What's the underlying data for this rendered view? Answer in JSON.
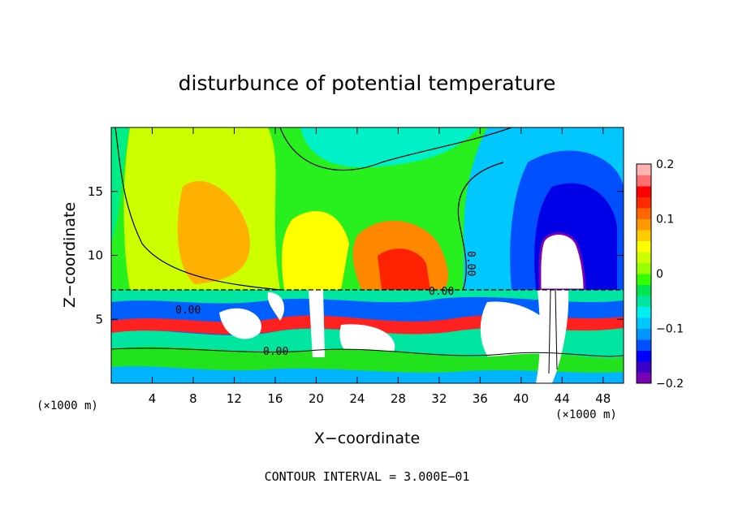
{
  "chart_data": {
    "type": "heatmap",
    "title": "disturbunce of potential temperature",
    "xlabel": "X−coordinate",
    "ylabel": "Z−coordinate",
    "x_unit": "(×1000 m)",
    "y_unit": "(×1000 m)",
    "xlim": [
      0,
      50
    ],
    "ylim": [
      0,
      20
    ],
    "x_ticks": [
      "4",
      "8",
      "12",
      "16",
      "20",
      "24",
      "28",
      "32",
      "36",
      "40",
      "44",
      "48"
    ],
    "y_ticks": [
      "5",
      "10",
      "15"
    ],
    "colorbar": {
      "range": [
        -0.2,
        0.2
      ],
      "labels": [
        "0.2",
        "0.1",
        "0",
        "−0.1",
        "−0.2"
      ],
      "colors": [
        "#7a00b4",
        "#3a00c8",
        "#0000ff",
        "#0050ff",
        "#0096ff",
        "#00c8ff",
        "#00f0f0",
        "#00e6a0",
        "#00e650",
        "#33ff00",
        "#96ff00",
        "#ccff00",
        "#ffff00",
        "#ffcc00",
        "#ff9900",
        "#ff6600",
        "#ff2a00",
        "#ff0000",
        "#ff6f6f",
        "#ffb0b0"
      ]
    },
    "contour_labels": [
      "0.00",
      "0.00",
      "0.00",
      "0.00"
    ],
    "footer": "CONTOUR INTERVAL = 3.000E−01"
  }
}
